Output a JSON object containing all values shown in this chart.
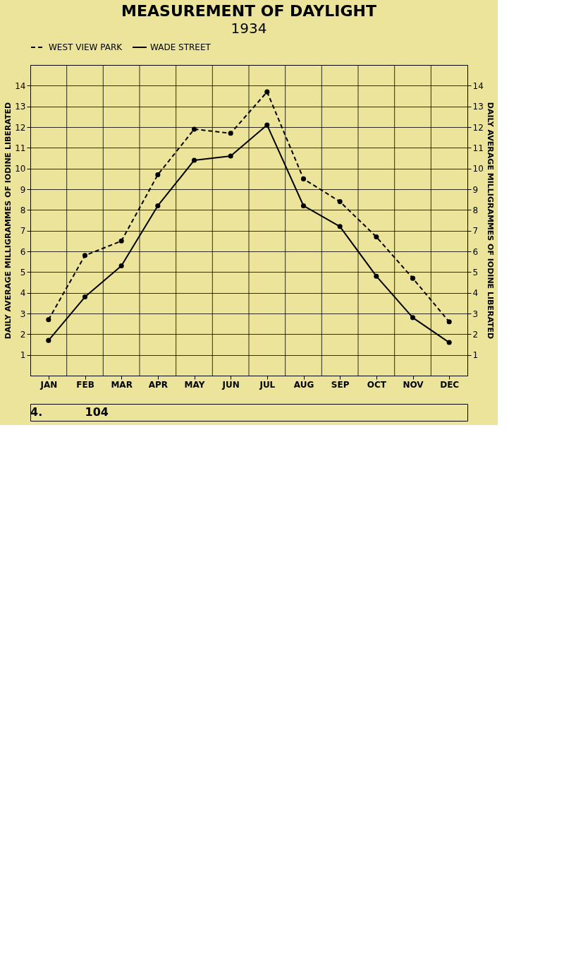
{
  "chart_data": {
    "type": "line",
    "title": "MEASUREMENT OF DAYLIGHT",
    "subtitle": "1934",
    "ylabel": "DAILY AVERAGE MILLIGRAMMES OF IODINE LIBERATED",
    "y2label": "DAILY AVERAGE MILLIGRAMMES OF IODINE LIBERATED",
    "categories": [
      "JAN",
      "FEB",
      "MAR",
      "APR",
      "MAY",
      "JUN",
      "JUL",
      "AUG",
      "SEP",
      "OCT",
      "NOV",
      "DEC"
    ],
    "series": [
      {
        "name": "WEST VIEW PARK",
        "color": "#000000",
        "line_style": "dashed",
        "values": [
          2.7,
          5.8,
          6.5,
          9.7,
          11.9,
          11.7,
          13.7,
          9.5,
          8.4,
          6.7,
          4.7,
          2.6
        ]
      },
      {
        "name": "WADE STREET",
        "color": "#000000",
        "line_style": "solid",
        "values": [
          1.7,
          3.8,
          5.3,
          8.2,
          10.4,
          10.6,
          12.1,
          8.2,
          7.2,
          4.8,
          2.8,
          1.6
        ]
      }
    ],
    "ylim": [
      0,
      15
    ],
    "yticks": [
      1,
      2,
      3,
      4,
      5,
      6,
      7,
      8,
      9,
      10,
      11,
      12,
      13,
      14
    ],
    "y2lim": [
      0,
      15
    ],
    "y2ticks": [
      1,
      2,
      3,
      4,
      5,
      6,
      7,
      8,
      9,
      10,
      11,
      12,
      13,
      14
    ],
    "marker": "circle",
    "grid": true,
    "legend": "top",
    "annotations": [
      "4.",
      "104"
    ]
  }
}
